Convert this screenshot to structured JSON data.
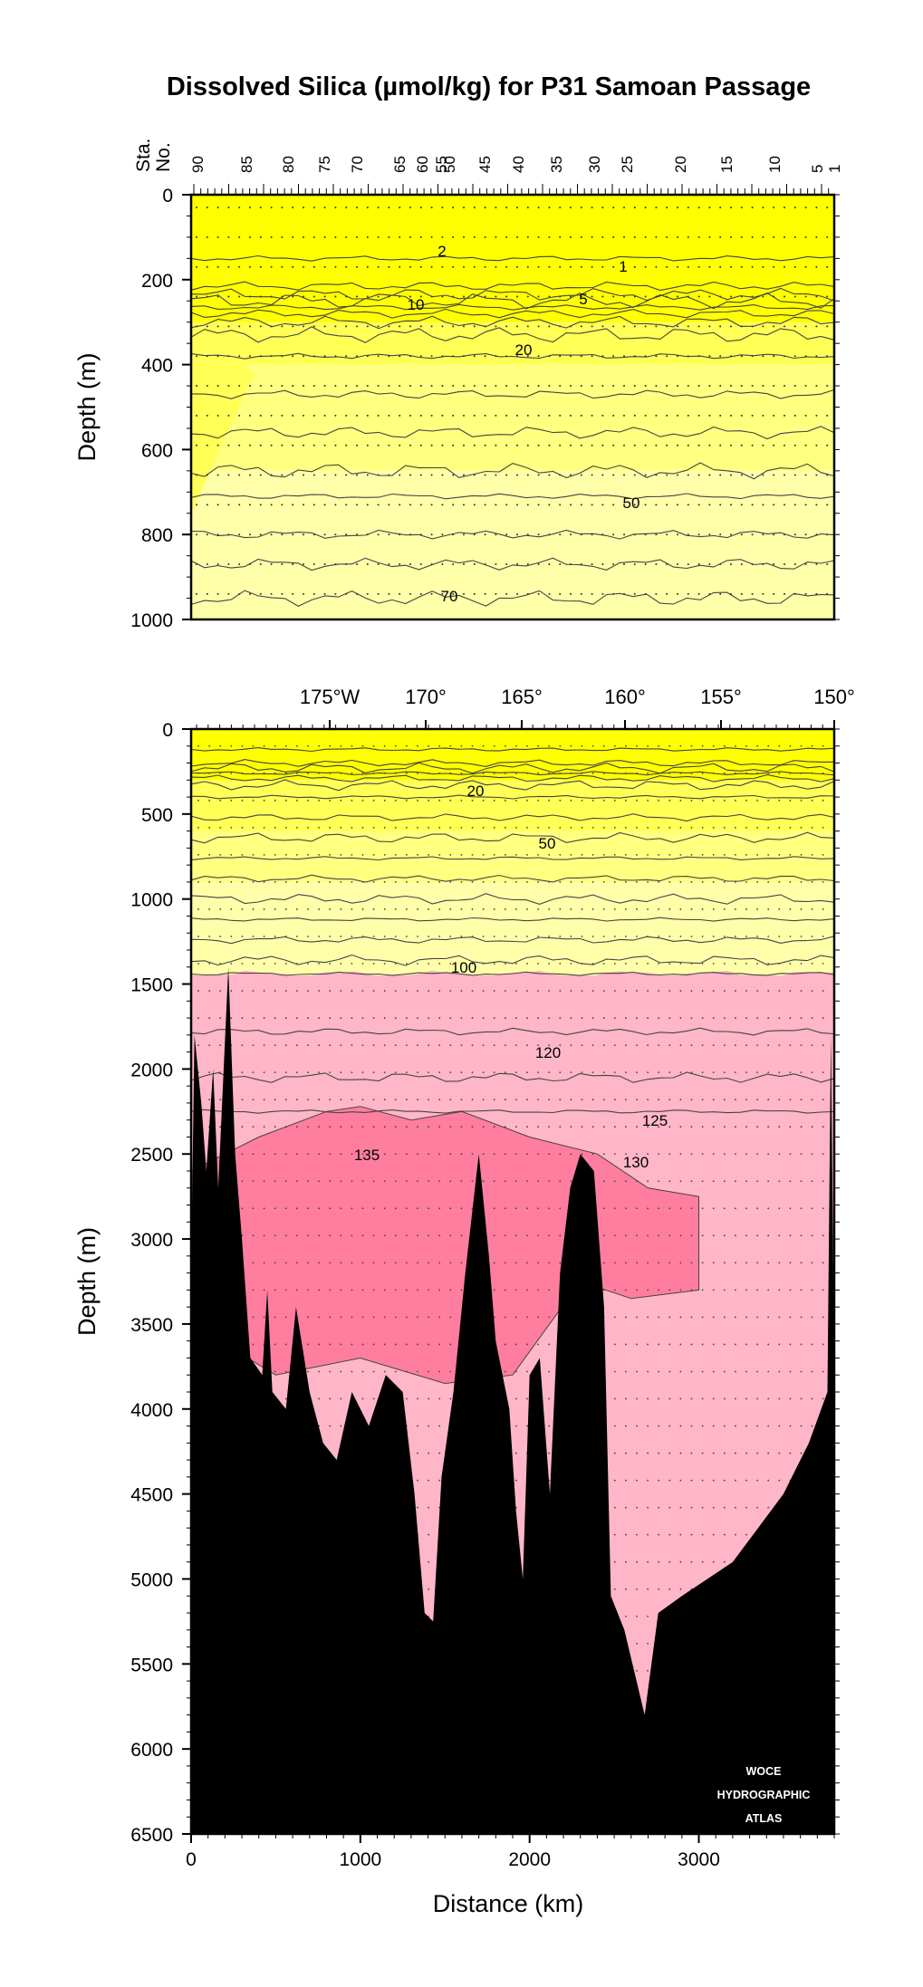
{
  "title": "Dissolved Silica (µmol/kg) for P31 Samoan Passage",
  "colors": {
    "band_lt10": "#ffff00",
    "band_10_20": "#ffff55",
    "band_20_50": "#ffff80",
    "band_50_100": "#ffffaa",
    "band_100_130": "#ffb6c8",
    "band_gt130": "#ff7ea0",
    "bottom": "#000000",
    "contour": "#444444"
  },
  "chart_data": [
    {
      "type": "contour",
      "panel": "upper",
      "top_axis_label": "Sta. No.",
      "ylabel": "Depth (m)",
      "ylim": [
        1000,
        0
      ],
      "y_ticks": [
        "0",
        "200",
        "400",
        "600",
        "800",
        "1000"
      ],
      "station_ticks": [
        "90",
        "85",
        "80",
        "75",
        "70",
        "65",
        "60",
        "55",
        "50",
        "45",
        "40",
        "35",
        "30",
        "25",
        "20",
        "15",
        "10",
        "5",
        "1"
      ],
      "contour_labels": [
        "2",
        "1",
        "5",
        "10",
        "20",
        "50",
        "70"
      ]
    },
    {
      "type": "contour",
      "panel": "lower",
      "xlabel": "Distance (km)",
      "ylabel": "Depth (m)",
      "xlim": [
        0,
        3800
      ],
      "ylim": [
        6500,
        0
      ],
      "x_ticks": [
        "0",
        "1000",
        "2000",
        "3000"
      ],
      "y_ticks": [
        "0",
        "500",
        "1000",
        "1500",
        "2000",
        "2500",
        "3000",
        "3500",
        "4000",
        "4500",
        "5000",
        "5500",
        "6000",
        "6500"
      ],
      "longitude_ticks": [
        "175°W",
        "170°",
        "165°",
        "160°",
        "155°",
        "150°"
      ],
      "contour_labels": [
        "20",
        "50",
        "100",
        "120",
        "125",
        "130",
        "135"
      ],
      "contour_levels": [
        1,
        2,
        5,
        10,
        20,
        50,
        70,
        100,
        120,
        125,
        130,
        135
      ],
      "atlas_label": [
        "WOCE",
        "HYDROGRAPHIC",
        "ATLAS"
      ]
    }
  ]
}
